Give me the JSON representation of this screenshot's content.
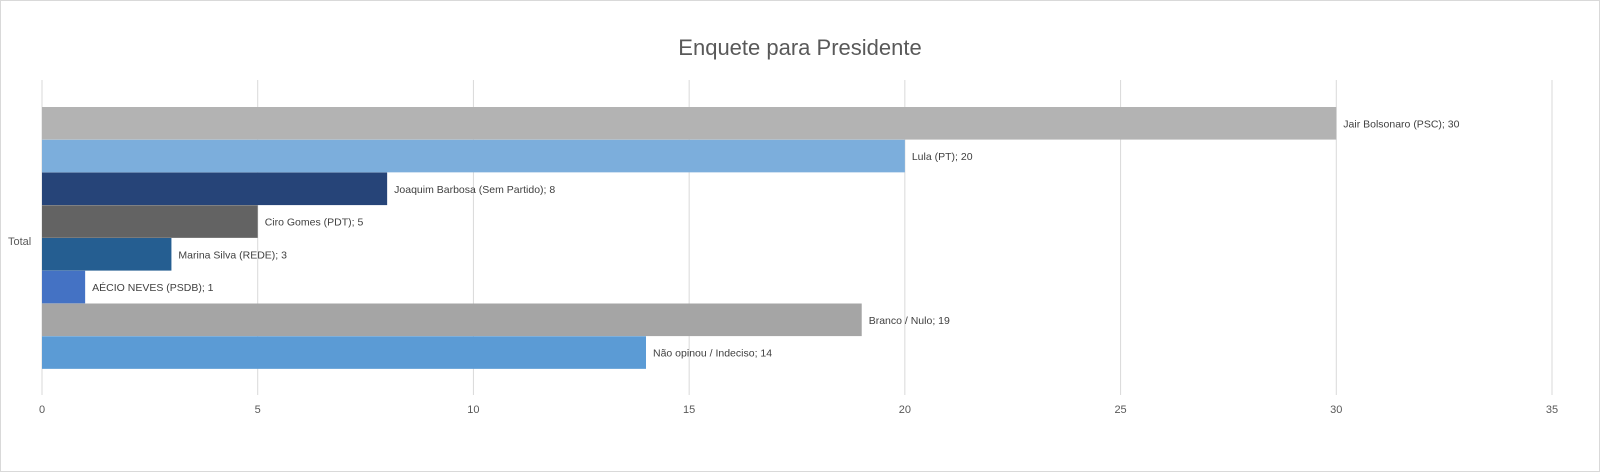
{
  "chart_data": {
    "type": "bar",
    "orientation": "horizontal",
    "title": "Enquete para Presidente",
    "category_label": "Total",
    "xlim": [
      0,
      35
    ],
    "x_ticks": [
      0,
      5,
      10,
      15,
      20,
      25,
      30,
      35
    ],
    "grid": true,
    "series": [
      {
        "name": "Jair Bolsonaro (PSC)",
        "value": 30,
        "label": "Jair Bolsonaro (PSC); 30",
        "color": "#b3b3b3"
      },
      {
        "name": "Lula (PT)",
        "value": 20,
        "label": "Lula (PT); 20",
        "color": "#7caedc"
      },
      {
        "name": "Joaquim Barbosa (Sem Partido)",
        "value": 8,
        "label": "Joaquim Barbosa (Sem Partido); 8",
        "color": "#264478"
      },
      {
        "name": "Ciro Gomes (PDT)",
        "value": 5,
        "label": "Ciro Gomes (PDT); 5",
        "color": "#636363"
      },
      {
        "name": "Marina Silva (REDE)",
        "value": 3,
        "label": "Marina Silva (REDE); 3",
        "color": "#255e91"
      },
      {
        "name": "AÉCIO NEVES (PSDB)",
        "value": 1,
        "label": "AÉCIO NEVES (PSDB); 1",
        "color": "#4472c4"
      },
      {
        "name": "Branco / Nulo",
        "value": 19,
        "label": "Branco / Nulo; 19",
        "color": "#a5a5a5"
      },
      {
        "name": "Não opinou / Indeciso",
        "value": 14,
        "label": "Não opinou / Indeciso; 14",
        "color": "#5b9bd5"
      }
    ]
  }
}
